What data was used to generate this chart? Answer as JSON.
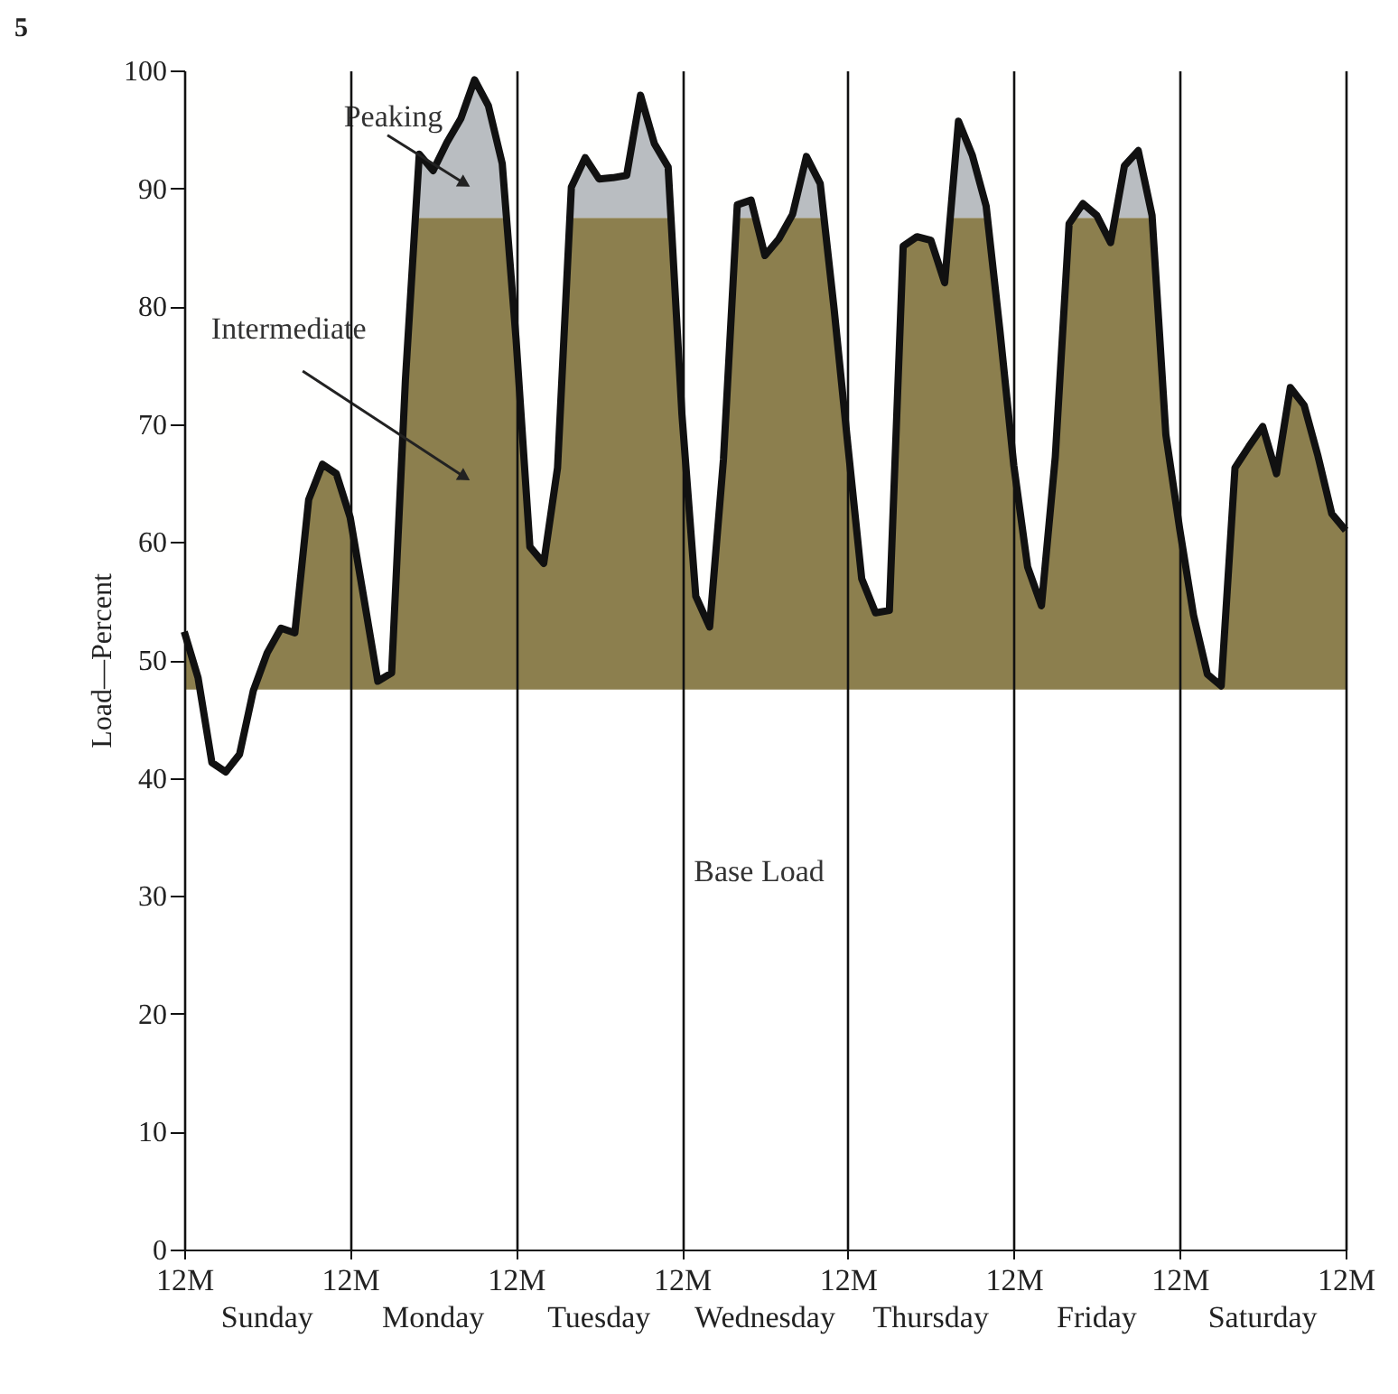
{
  "chart_data": {
    "type": "line",
    "title": "5",
    "ylabel": "Load—Percent",
    "categories": [
      "12M",
      null,
      null,
      null,
      null,
      null,
      null,
      null,
      null,
      null,
      null,
      null,
      "12M",
      null,
      null,
      null,
      null,
      null,
      null,
      null,
      null,
      null,
      null,
      null,
      "12M",
      null,
      null,
      null,
      null,
      null,
      null,
      null,
      null,
      null,
      null,
      null,
      "12M",
      null,
      null,
      null,
      null,
      null,
      null,
      null,
      null,
      null,
      null,
      null,
      "12M",
      null,
      null,
      null,
      null,
      null,
      null,
      null,
      null,
      null,
      null,
      null,
      "12M",
      null,
      null,
      null,
      null,
      null,
      null,
      null,
      null,
      null,
      null,
      null,
      "12M",
      null,
      null,
      null,
      null,
      null,
      null,
      null,
      null,
      null,
      null,
      null,
      "12M"
    ],
    "series": [
      {
        "color": "#111111",
        "values": [
          52.4,
          48.5,
          41.3,
          40.5,
          42.0,
          47.4,
          50.6,
          52.7,
          52.3,
          63.6,
          66.6,
          65.8,
          62.1,
          55.2,
          48.2,
          48.9,
          73.8,
          92.9,
          91.5,
          93.9,
          95.9,
          99.2,
          97.0,
          92.1,
          77.2,
          59.6,
          58.2,
          66.3,
          90.1,
          92.6,
          90.8,
          90.9,
          91.1,
          97.9,
          93.8,
          91.8,
          70.8,
          55.4,
          52.8,
          67.0,
          88.6,
          89.0,
          84.3,
          85.7,
          87.8,
          92.7,
          90.4,
          79.8,
          68.2,
          56.9,
          54.0,
          54.2,
          85.1,
          85.9,
          85.6,
          82.0,
          95.7,
          92.8,
          88.5,
          77.9,
          66.5,
          57.9,
          54.6,
          67.2,
          87.0,
          88.7,
          87.7,
          85.4,
          91.9,
          93.2,
          87.7,
          69.1,
          61.1,
          53.8,
          48.8,
          47.8,
          66.3,
          68.1,
          69.8,
          65.8,
          73.1,
          71.6,
          67.3,
          62.4,
          61.0
        ]
      }
    ],
    "bands": [
      {
        "axis": "y",
        "from": 47.5,
        "to": 87.5,
        "label": "Intermediate",
        "color": "#8c7f4e"
      },
      {
        "axis": "y",
        "from": 87.5,
        "to": 100,
        "label": "Peaking",
        "color": "#b9bdc1"
      }
    ],
    "annotations": [
      "Base Load",
      "Sunday",
      "Monday",
      "Tuesday",
      "Wednesday",
      "Thursday",
      "Friday",
      "Saturday"
    ],
    "ylim": [
      0,
      100
    ],
    "yticks": [
      0,
      10,
      20,
      30,
      40,
      50,
      60,
      70,
      80,
      90,
      100
    ],
    "grid": "x",
    "line_style": "solid",
    "marker": "none"
  }
}
